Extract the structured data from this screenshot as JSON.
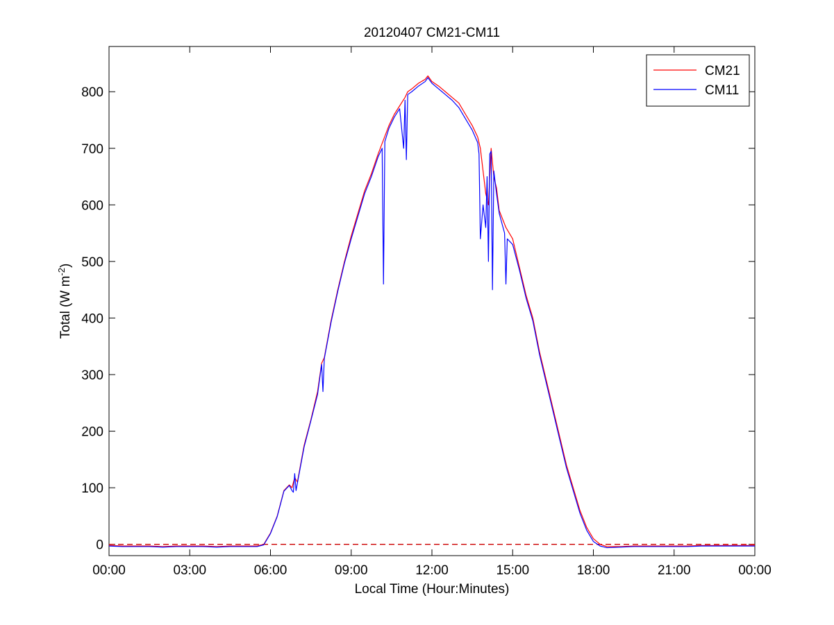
{
  "chart_data": {
    "type": "line",
    "title": "20120407 CM21-CM11",
    "xlabel": "Local Time (Hour:Minutes)",
    "ylabel": {
      "text": "Total (W m",
      "sup": "-2",
      "close": ")"
    },
    "x_unit": "hours",
    "xlim": [
      0,
      24
    ],
    "ylim": [
      -20,
      880
    ],
    "x_ticks": [
      0,
      3,
      6,
      9,
      12,
      15,
      18,
      21,
      24
    ],
    "x_tick_labels": [
      "00:00",
      "03:00",
      "06:00",
      "09:00",
      "12:00",
      "15:00",
      "18:00",
      "21:00",
      "00:00"
    ],
    "y_ticks": [
      0,
      100,
      200,
      300,
      400,
      500,
      600,
      700,
      800
    ],
    "grid": false,
    "legend_position": "top-right",
    "reference_line": {
      "y": 0,
      "style": "dashed",
      "color": "#cc0000"
    },
    "series": [
      {
        "name": "CM21",
        "color": "#ff0000",
        "x": [
          0,
          0.5,
          1.0,
          1.5,
          2.0,
          2.5,
          3.0,
          3.5,
          4.0,
          4.5,
          5.0,
          5.5,
          5.75,
          6.0,
          6.25,
          6.5,
          6.7,
          6.8,
          6.9,
          7.0,
          7.25,
          7.5,
          7.75,
          7.9,
          8.0,
          8.25,
          8.5,
          8.75,
          9.0,
          9.25,
          9.5,
          9.75,
          10.0,
          10.2,
          10.4,
          10.6,
          10.8,
          11.0,
          11.1,
          11.25,
          11.5,
          11.75,
          11.85,
          12.0,
          12.25,
          12.5,
          12.75,
          13.0,
          13.25,
          13.5,
          13.7,
          13.8,
          13.9,
          14.0,
          14.1,
          14.2,
          14.3,
          14.4,
          14.5,
          14.75,
          15.0,
          15.25,
          15.5,
          15.75,
          16.0,
          16.25,
          16.5,
          16.75,
          17.0,
          17.25,
          17.5,
          17.75,
          18.0,
          18.25,
          18.5,
          19.0,
          19.5,
          20.0,
          20.5,
          21.0,
          21.5,
          22.0,
          22.5,
          23.0,
          23.5,
          24.0
        ],
        "y": [
          -2,
          -3,
          -3,
          -3,
          -4,
          -3,
          -3,
          -3,
          -4,
          -3,
          -3,
          -3,
          0,
          20,
          50,
          95,
          105,
          100,
          118,
          110,
          175,
          220,
          270,
          320,
          330,
          395,
          450,
          500,
          545,
          585,
          625,
          655,
          690,
          715,
          740,
          760,
          775,
          790,
          800,
          805,
          815,
          822,
          828,
          818,
          810,
          800,
          790,
          780,
          760,
          740,
          720,
          700,
          660,
          620,
          600,
          700,
          650,
          630,
          590,
          560,
          540,
          490,
          440,
          400,
          340,
          290,
          240,
          190,
          140,
          100,
          60,
          30,
          10,
          0,
          -4,
          -4,
          -3,
          -3,
          -3,
          -3,
          -3,
          -2,
          -2,
          -2,
          -2,
          -2
        ]
      },
      {
        "name": "CM11",
        "color": "#0000ff",
        "x": [
          0,
          0.5,
          1.0,
          1.5,
          2.0,
          2.5,
          3.0,
          3.5,
          4.0,
          4.5,
          5.0,
          5.5,
          5.75,
          6.0,
          6.25,
          6.5,
          6.7,
          6.8,
          6.85,
          6.9,
          6.95,
          7.0,
          7.25,
          7.5,
          7.75,
          7.9,
          7.95,
          8.0,
          8.25,
          8.5,
          8.75,
          9.0,
          9.25,
          9.5,
          9.75,
          10.0,
          10.15,
          10.2,
          10.25,
          10.4,
          10.6,
          10.8,
          10.95,
          11.0,
          11.05,
          11.1,
          11.25,
          11.5,
          11.75,
          11.85,
          12.0,
          12.25,
          12.5,
          12.75,
          13.0,
          13.25,
          13.5,
          13.7,
          13.75,
          13.8,
          13.9,
          14.0,
          14.05,
          14.1,
          14.15,
          14.2,
          14.25,
          14.3,
          14.4,
          14.5,
          14.7,
          14.75,
          14.8,
          15.0,
          15.25,
          15.5,
          15.75,
          16.0,
          16.25,
          16.5,
          16.75,
          17.0,
          17.25,
          17.5,
          17.75,
          18.0,
          18.25,
          18.5,
          19.0,
          19.5,
          20.0,
          20.5,
          21.0,
          21.5,
          22.0,
          22.5,
          23.0,
          23.5,
          24.0
        ],
        "y": [
          -3,
          -4,
          -4,
          -4,
          -5,
          -4,
          -4,
          -4,
          -5,
          -4,
          -4,
          -4,
          -1,
          19,
          49,
          94,
          104,
          95,
          92,
          125,
          95,
          108,
          172,
          218,
          265,
          318,
          270,
          328,
          392,
          447,
          497,
          540,
          580,
          620,
          650,
          685,
          700,
          460,
          712,
          735,
          755,
          770,
          700,
          785,
          680,
          795,
          800,
          810,
          818,
          825,
          815,
          805,
          795,
          785,
          772,
          752,
          732,
          710,
          690,
          540,
          600,
          560,
          650,
          500,
          690,
          695,
          450,
          660,
          620,
          585,
          550,
          460,
          540,
          530,
          485,
          435,
          395,
          335,
          285,
          235,
          185,
          135,
          95,
          55,
          25,
          5,
          -3,
          -6,
          -5,
          -4,
          -4,
          -4,
          -4,
          -4,
          -3,
          -3,
          -3,
          -3,
          -3
        ]
      }
    ]
  }
}
